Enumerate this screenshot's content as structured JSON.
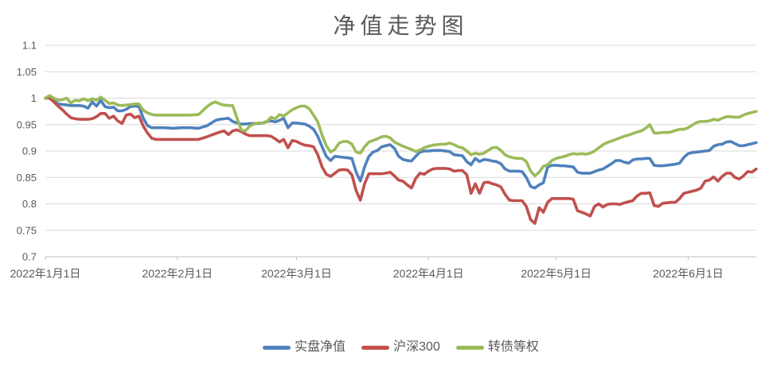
{
  "title": "净值走势图",
  "legend": {
    "items": [
      {
        "key": "actual-nav",
        "label": "实盘净值",
        "color": "#4F81BD"
      },
      {
        "key": "csi300",
        "label": "沪深300",
        "color": "#C0504D"
      },
      {
        "key": "cb-equal-weight",
        "label": "转债等权",
        "color": "#9BBB59"
      }
    ]
  },
  "colors": {
    "text_gray": "#595959",
    "gridline": "#d9d9d9",
    "axis_line": "#bfbfbf",
    "background": "#ffffff"
  },
  "chart_data": {
    "type": "line",
    "title": "净值走势图",
    "xlabel": "",
    "ylabel": "",
    "x_unit": "days since 2022-01-01",
    "xlim": [
      0,
      167
    ],
    "ylim": [
      0.7,
      1.1
    ],
    "grid": "horizontal",
    "legend_position": "bottom",
    "y_ticks": [
      {
        "v": 1.1,
        "label": "1.1"
      },
      {
        "v": 1.05,
        "label": "1.05"
      },
      {
        "v": 1.0,
        "label": "1"
      },
      {
        "v": 0.95,
        "label": "0.95"
      },
      {
        "v": 0.9,
        "label": "0.9"
      },
      {
        "v": 0.85,
        "label": "0.85"
      },
      {
        "v": 0.8,
        "label": "0.8"
      },
      {
        "v": 0.75,
        "label": "0.75"
      },
      {
        "v": 0.7,
        "label": "0.7"
      }
    ],
    "x_ticks": [
      {
        "v": 0,
        "label": "2022年1月1日"
      },
      {
        "v": 31,
        "label": "2022年2月1日"
      },
      {
        "v": 59,
        "label": "2022年3月1日"
      },
      {
        "v": 90,
        "label": "2022年4月1日"
      },
      {
        "v": 120,
        "label": "2022年5月1日"
      },
      {
        "v": 151,
        "label": "2022年6月1日"
      }
    ],
    "x": [
      0,
      1,
      2,
      3,
      4,
      5,
      6,
      7,
      8,
      9,
      10,
      11,
      12,
      13,
      14,
      15,
      16,
      17,
      18,
      19,
      20,
      21,
      22,
      23,
      24,
      25,
      26,
      28,
      30,
      32,
      34,
      36,
      38,
      39,
      40,
      41,
      42,
      43,
      44,
      45,
      46,
      47,
      48,
      49,
      50,
      51,
      52,
      53,
      54,
      55,
      56,
      57,
      58,
      59,
      60,
      61,
      62,
      63,
      64,
      65,
      66,
      67,
      68,
      69,
      70,
      71,
      72,
      73,
      74,
      75,
      76,
      77,
      78,
      79,
      80,
      81,
      82,
      83,
      84,
      85,
      86,
      87,
      88,
      89,
      90,
      91,
      92,
      93,
      94,
      95,
      96,
      97,
      98,
      99,
      100,
      101,
      102,
      103,
      104,
      105,
      106,
      107,
      108,
      109,
      110,
      111,
      112,
      113,
      114,
      115,
      116,
      117,
      118,
      119,
      120,
      121,
      122,
      123,
      124,
      125,
      126,
      127,
      128,
      129,
      130,
      131,
      132,
      133,
      134,
      135,
      136,
      137,
      138,
      139,
      140,
      141,
      142,
      143,
      144,
      145,
      146,
      147,
      148,
      149,
      150,
      151,
      152,
      153,
      154,
      155,
      156,
      157,
      158,
      159,
      160,
      161,
      162,
      163,
      164,
      165,
      166,
      167
    ],
    "series": [
      {
        "name": "实盘净值",
        "key": "actual-nav",
        "color": "#4F81BD",
        "values": [
          1.0,
          1.001,
          0.996,
          0.989,
          0.988,
          0.987,
          0.986,
          0.986,
          0.986,
          0.985,
          0.981,
          0.993,
          0.985,
          0.996,
          0.984,
          0.982,
          0.983,
          0.976,
          0.976,
          0.979,
          0.984,
          0.985,
          0.984,
          0.962,
          0.948,
          0.944,
          0.944,
          0.944,
          0.943,
          0.944,
          0.944,
          0.943,
          0.948,
          0.953,
          0.958,
          0.96,
          0.961,
          0.962,
          0.956,
          0.953,
          0.951,
          0.951,
          0.952,
          0.952,
          0.952,
          0.953,
          0.956,
          0.957,
          0.955,
          0.958,
          0.962,
          0.944,
          0.953,
          0.953,
          0.952,
          0.951,
          0.947,
          0.941,
          0.928,
          0.908,
          0.89,
          0.882,
          0.89,
          0.889,
          0.888,
          0.887,
          0.886,
          0.86,
          0.843,
          0.87,
          0.89,
          0.898,
          0.901,
          0.908,
          0.91,
          0.912,
          0.905,
          0.89,
          0.884,
          0.882,
          0.881,
          0.89,
          0.898,
          0.9,
          0.9,
          0.901,
          0.901,
          0.901,
          0.9,
          0.899,
          0.893,
          0.892,
          0.891,
          0.88,
          0.874,
          0.886,
          0.88,
          0.884,
          0.883,
          0.881,
          0.88,
          0.876,
          0.866,
          0.862,
          0.862,
          0.862,
          0.861,
          0.85,
          0.833,
          0.83,
          0.836,
          0.84,
          0.87,
          0.873,
          0.873,
          0.872,
          0.872,
          0.871,
          0.87,
          0.86,
          0.858,
          0.858,
          0.858,
          0.861,
          0.864,
          0.866,
          0.871,
          0.876,
          0.882,
          0.882,
          0.879,
          0.877,
          0.883,
          0.885,
          0.885,
          0.886,
          0.886,
          0.873,
          0.872,
          0.872,
          0.873,
          0.874,
          0.875,
          0.877,
          0.888,
          0.895,
          0.897,
          0.898,
          0.899,
          0.9,
          0.901,
          0.909,
          0.912,
          0.913,
          0.917,
          0.918,
          0.914,
          0.91,
          0.91,
          0.912,
          0.914,
          0.916
        ]
      },
      {
        "name": "沪深300",
        "key": "csi300",
        "color": "#C0504D",
        "values": [
          1.0,
          1.0,
          0.993,
          0.985,
          0.978,
          0.97,
          0.963,
          0.961,
          0.96,
          0.96,
          0.96,
          0.961,
          0.965,
          0.971,
          0.971,
          0.962,
          0.966,
          0.957,
          0.952,
          0.968,
          0.97,
          0.963,
          0.966,
          0.947,
          0.934,
          0.924,
          0.922,
          0.922,
          0.922,
          0.922,
          0.922,
          0.922,
          0.927,
          0.93,
          0.933,
          0.936,
          0.938,
          0.931,
          0.938,
          0.94,
          0.937,
          0.932,
          0.929,
          0.929,
          0.929,
          0.929,
          0.929,
          0.928,
          0.923,
          0.917,
          0.922,
          0.906,
          0.92,
          0.918,
          0.914,
          0.911,
          0.91,
          0.908,
          0.893,
          0.87,
          0.856,
          0.852,
          0.858,
          0.864,
          0.865,
          0.864,
          0.855,
          0.825,
          0.807,
          0.838,
          0.857,
          0.857,
          0.857,
          0.857,
          0.858,
          0.86,
          0.853,
          0.845,
          0.843,
          0.836,
          0.83,
          0.848,
          0.858,
          0.856,
          0.862,
          0.866,
          0.867,
          0.867,
          0.867,
          0.866,
          0.862,
          0.863,
          0.863,
          0.855,
          0.82,
          0.838,
          0.82,
          0.84,
          0.841,
          0.838,
          0.836,
          0.832,
          0.818,
          0.807,
          0.806,
          0.806,
          0.806,
          0.795,
          0.77,
          0.763,
          0.793,
          0.784,
          0.803,
          0.81,
          0.81,
          0.81,
          0.81,
          0.81,
          0.809,
          0.787,
          0.784,
          0.781,
          0.777,
          0.795,
          0.8,
          0.794,
          0.799,
          0.8,
          0.8,
          0.799,
          0.802,
          0.804,
          0.806,
          0.815,
          0.82,
          0.82,
          0.821,
          0.797,
          0.795,
          0.801,
          0.802,
          0.803,
          0.803,
          0.81,
          0.82,
          0.822,
          0.824,
          0.826,
          0.83,
          0.843,
          0.845,
          0.851,
          0.843,
          0.852,
          0.858,
          0.858,
          0.85,
          0.847,
          0.853,
          0.861,
          0.86,
          0.866
        ]
      },
      {
        "name": "转债等权",
        "key": "cb-equal-weight",
        "color": "#9BBB59",
        "values": [
          1.0,
          1.005,
          1.0,
          0.996,
          0.997,
          1.0,
          0.991,
          0.996,
          0.995,
          0.999,
          0.995,
          0.999,
          0.996,
          1.002,
          0.996,
          0.99,
          0.991,
          0.987,
          0.986,
          0.987,
          0.988,
          0.989,
          0.989,
          0.977,
          0.972,
          0.969,
          0.968,
          0.968,
          0.968,
          0.968,
          0.968,
          0.969,
          0.984,
          0.99,
          0.993,
          0.989,
          0.987,
          0.986,
          0.986,
          0.963,
          0.94,
          0.938,
          0.947,
          0.951,
          0.953,
          0.953,
          0.955,
          0.964,
          0.961,
          0.969,
          0.966,
          0.972,
          0.978,
          0.982,
          0.985,
          0.985,
          0.98,
          0.968,
          0.955,
          0.93,
          0.91,
          0.898,
          0.903,
          0.915,
          0.918,
          0.918,
          0.913,
          0.898,
          0.896,
          0.908,
          0.917,
          0.92,
          0.923,
          0.927,
          0.928,
          0.925,
          0.917,
          0.913,
          0.909,
          0.906,
          0.903,
          0.899,
          0.902,
          0.906,
          0.909,
          0.911,
          0.912,
          0.913,
          0.913,
          0.915,
          0.912,
          0.908,
          0.906,
          0.9,
          0.893,
          0.896,
          0.894,
          0.896,
          0.901,
          0.906,
          0.907,
          0.901,
          0.893,
          0.889,
          0.887,
          0.886,
          0.886,
          0.88,
          0.862,
          0.853,
          0.86,
          0.871,
          0.874,
          0.882,
          0.886,
          0.888,
          0.89,
          0.893,
          0.895,
          0.894,
          0.895,
          0.894,
          0.896,
          0.9,
          0.906,
          0.912,
          0.916,
          0.919,
          0.922,
          0.925,
          0.928,
          0.93,
          0.933,
          0.936,
          0.938,
          0.943,
          0.95,
          0.934,
          0.934,
          0.935,
          0.935,
          0.936,
          0.939,
          0.941,
          0.941,
          0.944,
          0.949,
          0.954,
          0.956,
          0.956,
          0.957,
          0.96,
          0.958,
          0.962,
          0.965,
          0.965,
          0.964,
          0.964,
          0.968,
          0.971,
          0.973,
          0.975
        ]
      }
    ]
  }
}
